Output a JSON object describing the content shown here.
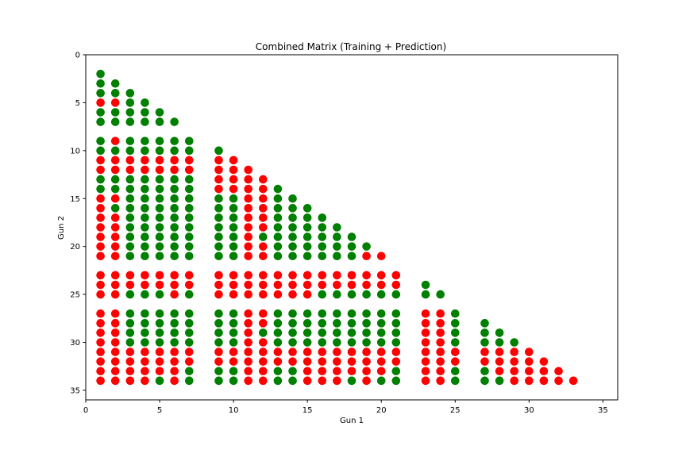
{
  "chart_data": {
    "type": "scatter",
    "title": "Combined Matrix (Training + Prediction)",
    "xlabel": "Gun 1",
    "ylabel": "Gun 2",
    "xlim": [
      0,
      36
    ],
    "ylim": [
      0,
      36
    ],
    "y_inverted": true,
    "grid": false,
    "legend": "none",
    "xticks": [
      0,
      5,
      10,
      15,
      20,
      25,
      30,
      35
    ],
    "yticks": [
      0,
      5,
      10,
      15,
      20,
      25,
      30,
      35
    ],
    "colors": {
      "G": "#008000",
      "R": "#ff0000"
    },
    "rows": [
      {
        "y": 2,
        "cells": {
          "1": "G"
        }
      },
      {
        "y": 3,
        "cells": {
          "1": "G",
          "2": "G"
        }
      },
      {
        "y": 4,
        "cells": {
          "1": "G",
          "2": "G",
          "3": "G"
        }
      },
      {
        "y": 5,
        "cells": {
          "1": "R",
          "2": "R",
          "3": "G",
          "4": "G"
        }
      },
      {
        "y": 6,
        "cells": {
          "1": "G",
          "2": "G",
          "3": "G",
          "4": "G",
          "5": "G"
        }
      },
      {
        "y": 7,
        "cells": {
          "1": "G",
          "2": "G",
          "3": "G",
          "4": "G",
          "5": "G",
          "6": "G"
        }
      },
      {
        "y": 9,
        "cells": {
          "1": "G",
          "2": "R",
          "3": "G",
          "4": "G",
          "5": "G",
          "6": "G",
          "7": "G"
        }
      },
      {
        "y": 10,
        "cells": {
          "1": "G",
          "2": "G",
          "3": "G",
          "4": "G",
          "5": "G",
          "6": "G",
          "7": "G",
          "9": "G"
        }
      },
      {
        "y": 11,
        "cells": {
          "1": "R",
          "2": "R",
          "3": "R",
          "4": "R",
          "5": "R",
          "6": "R",
          "7": "R",
          "9": "R",
          "10": "R"
        }
      },
      {
        "y": 12,
        "cells": {
          "1": "R",
          "2": "R",
          "3": "R",
          "4": "R",
          "5": "R",
          "6": "R",
          "7": "R",
          "9": "R",
          "10": "R",
          "11": "R"
        }
      },
      {
        "y": 13,
        "cells": {
          "1": "G",
          "2": "G",
          "3": "G",
          "4": "G",
          "5": "G",
          "6": "G",
          "7": "G",
          "9": "R",
          "10": "R",
          "11": "R",
          "12": "R"
        }
      },
      {
        "y": 14,
        "cells": {
          "1": "G",
          "2": "G",
          "3": "G",
          "4": "G",
          "5": "G",
          "6": "G",
          "7": "G",
          "9": "R",
          "10": "R",
          "11": "R",
          "12": "R",
          "13": "G"
        }
      },
      {
        "y": 15,
        "cells": {
          "1": "R",
          "2": "R",
          "3": "G",
          "4": "G",
          "5": "G",
          "6": "G",
          "7": "G",
          "9": "G",
          "10": "G",
          "11": "R",
          "12": "R",
          "13": "G",
          "14": "G"
        }
      },
      {
        "y": 16,
        "cells": {
          "1": "R",
          "2": "G",
          "3": "G",
          "4": "G",
          "5": "G",
          "6": "G",
          "7": "G",
          "9": "G",
          "10": "G",
          "11": "R",
          "12": "R",
          "13": "G",
          "14": "G",
          "15": "G"
        }
      },
      {
        "y": 17,
        "cells": {
          "1": "R",
          "2": "R",
          "3": "G",
          "4": "G",
          "5": "G",
          "6": "G",
          "7": "G",
          "9": "G",
          "10": "G",
          "11": "R",
          "12": "R",
          "13": "G",
          "14": "G",
          "15": "G",
          "16": "G"
        }
      },
      {
        "y": 18,
        "cells": {
          "1": "R",
          "2": "R",
          "3": "G",
          "4": "G",
          "5": "G",
          "6": "G",
          "7": "G",
          "9": "G",
          "10": "G",
          "11": "R",
          "12": "R",
          "13": "G",
          "14": "G",
          "15": "G",
          "16": "G",
          "17": "G"
        }
      },
      {
        "y": 19,
        "cells": {
          "1": "R",
          "2": "R",
          "3": "G",
          "4": "G",
          "5": "G",
          "6": "G",
          "7": "G",
          "9": "G",
          "10": "G",
          "11": "R",
          "12": "G",
          "13": "G",
          "14": "G",
          "15": "G",
          "16": "G",
          "17": "G",
          "18": "G"
        }
      },
      {
        "y": 20,
        "cells": {
          "1": "R",
          "2": "R",
          "3": "G",
          "4": "G",
          "5": "G",
          "6": "G",
          "7": "G",
          "9": "G",
          "10": "G",
          "11": "R",
          "12": "R",
          "13": "G",
          "14": "G",
          "15": "G",
          "16": "G",
          "17": "G",
          "18": "G",
          "19": "G"
        }
      },
      {
        "y": 21,
        "cells": {
          "1": "R",
          "2": "R",
          "3": "G",
          "4": "G",
          "5": "G",
          "6": "G",
          "7": "G",
          "9": "G",
          "10": "G",
          "11": "R",
          "12": "R",
          "13": "G",
          "14": "G",
          "15": "G",
          "16": "G",
          "17": "G",
          "18": "G",
          "19": "R",
          "20": "R"
        }
      },
      {
        "y": 23,
        "cells": {
          "1": "R",
          "2": "R",
          "3": "R",
          "4": "R",
          "5": "R",
          "6": "R",
          "7": "R",
          "9": "R",
          "10": "R",
          "11": "R",
          "12": "R",
          "13": "R",
          "14": "R",
          "15": "R",
          "16": "R",
          "17": "R",
          "18": "R",
          "19": "R",
          "20": "R",
          "21": "R"
        }
      },
      {
        "y": 24,
        "cells": {
          "1": "R",
          "2": "R",
          "3": "R",
          "4": "R",
          "5": "R",
          "6": "R",
          "7": "R",
          "9": "R",
          "10": "R",
          "11": "R",
          "12": "R",
          "13": "R",
          "14": "R",
          "15": "R",
          "16": "R",
          "17": "R",
          "18": "R",
          "19": "R",
          "20": "R",
          "21": "R",
          "23": "G"
        }
      },
      {
        "y": 25,
        "cells": {
          "1": "R",
          "2": "R",
          "3": "G",
          "4": "G",
          "5": "G",
          "6": "R",
          "7": "G",
          "9": "R",
          "10": "R",
          "11": "R",
          "12": "R",
          "13": "R",
          "14": "R",
          "15": "R",
          "16": "G",
          "17": "G",
          "18": "G",
          "19": "G",
          "20": "G",
          "21": "G",
          "23": "G",
          "24": "G"
        }
      },
      {
        "y": 27,
        "cells": {
          "1": "R",
          "2": "R",
          "3": "G",
          "4": "G",
          "5": "G",
          "6": "G",
          "7": "G",
          "9": "G",
          "10": "G",
          "11": "R",
          "12": "R",
          "13": "G",
          "14": "G",
          "15": "G",
          "16": "G",
          "17": "G",
          "18": "G",
          "19": "G",
          "20": "G",
          "21": "G",
          "23": "R",
          "24": "R",
          "25": "G"
        }
      },
      {
        "y": 28,
        "cells": {
          "1": "R",
          "2": "R",
          "3": "G",
          "4": "G",
          "5": "G",
          "6": "G",
          "7": "G",
          "9": "G",
          "10": "G",
          "11": "R",
          "12": "R",
          "13": "G",
          "14": "G",
          "15": "G",
          "16": "G",
          "17": "G",
          "18": "G",
          "19": "G",
          "20": "G",
          "21": "G",
          "23": "R",
          "24": "R",
          "25": "G",
          "27": "G"
        }
      },
      {
        "y": 29,
        "cells": {
          "1": "R",
          "2": "R",
          "3": "G",
          "4": "G",
          "5": "G",
          "6": "G",
          "7": "G",
          "9": "G",
          "10": "G",
          "11": "R",
          "12": "G",
          "13": "G",
          "14": "G",
          "15": "G",
          "16": "G",
          "17": "G",
          "18": "G",
          "19": "G",
          "20": "G",
          "21": "G",
          "23": "R",
          "24": "R",
          "25": "G",
          "27": "G",
          "28": "G"
        }
      },
      {
        "y": 30,
        "cells": {
          "1": "R",
          "2": "R",
          "3": "G",
          "4": "G",
          "5": "G",
          "6": "G",
          "7": "G",
          "9": "G",
          "10": "G",
          "11": "R",
          "12": "R",
          "13": "G",
          "14": "G",
          "15": "G",
          "16": "G",
          "17": "G",
          "18": "G",
          "19": "G",
          "20": "G",
          "21": "G",
          "23": "R",
          "24": "R",
          "25": "G",
          "27": "G",
          "28": "G",
          "29": "G"
        }
      },
      {
        "y": 31,
        "cells": {
          "1": "R",
          "2": "R",
          "3": "R",
          "4": "R",
          "5": "R",
          "6": "R",
          "7": "R",
          "9": "R",
          "10": "R",
          "11": "R",
          "12": "R",
          "13": "R",
          "14": "R",
          "15": "R",
          "16": "R",
          "17": "R",
          "18": "R",
          "19": "R",
          "20": "R",
          "21": "R",
          "23": "R",
          "24": "R",
          "25": "R",
          "27": "R",
          "28": "R",
          "29": "R",
          "30": "R"
        }
      },
      {
        "y": 32,
        "cells": {
          "1": "R",
          "2": "R",
          "3": "R",
          "4": "R",
          "5": "R",
          "6": "R",
          "7": "R",
          "9": "R",
          "10": "R",
          "11": "R",
          "12": "R",
          "13": "R",
          "14": "R",
          "15": "R",
          "16": "R",
          "17": "R",
          "18": "R",
          "19": "R",
          "20": "R",
          "21": "R",
          "23": "R",
          "24": "R",
          "25": "R",
          "27": "R",
          "28": "R",
          "29": "R",
          "30": "R",
          "31": "R"
        }
      },
      {
        "y": 33,
        "cells": {
          "1": "R",
          "2": "R",
          "3": "R",
          "4": "R",
          "5": "R",
          "6": "R",
          "7": "G",
          "9": "G",
          "10": "G",
          "11": "R",
          "12": "R",
          "13": "G",
          "14": "G",
          "15": "R",
          "16": "R",
          "17": "R",
          "18": "R",
          "19": "R",
          "20": "R",
          "21": "G",
          "23": "R",
          "24": "R",
          "25": "G",
          "27": "G",
          "28": "R",
          "29": "R",
          "30": "R",
          "31": "R",
          "32": "R"
        }
      },
      {
        "y": 34,
        "cells": {
          "1": "R",
          "2": "R",
          "3": "R",
          "4": "R",
          "5": "G",
          "6": "R",
          "7": "G",
          "9": "G",
          "10": "G",
          "11": "R",
          "12": "R",
          "13": "G",
          "14": "G",
          "15": "R",
          "16": "R",
          "17": "R",
          "18": "G",
          "19": "R",
          "20": "G",
          "21": "G",
          "23": "R",
          "24": "R",
          "25": "G",
          "27": "G",
          "28": "G",
          "29": "R",
          "30": "R",
          "31": "R",
          "32": "R",
          "33": "R"
        }
      }
    ]
  }
}
